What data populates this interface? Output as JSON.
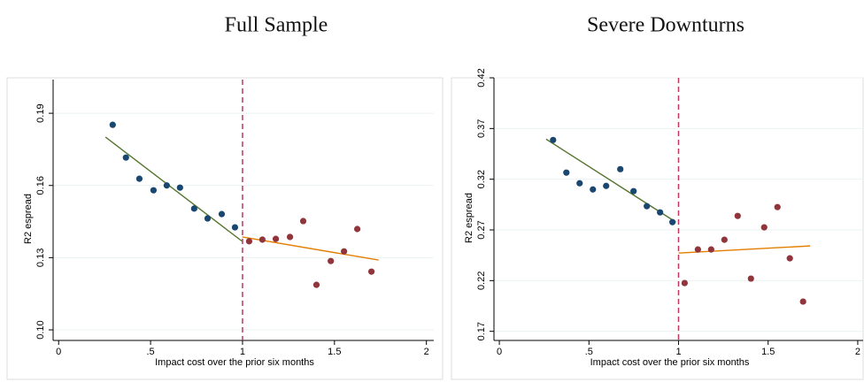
{
  "chart_data": [
    {
      "type": "scatter",
      "title": "Full Sample",
      "xlabel": "Impact cost over the prior six months",
      "ylabel": "R2 espread",
      "xlim": [
        -0.03,
        2.04
      ],
      "ylim": [
        0.0956,
        0.204
      ],
      "xticks": [
        0,
        {
          "value": 0.5,
          "label": ".5"
        },
        1,
        {
          "value": 1.5,
          "label": "1.5"
        },
        2
      ],
      "yticks": [
        {
          "value": 0.1,
          "label": "0.10"
        },
        0.13,
        0.16,
        0.19
      ],
      "grid": true,
      "series": [
        {
          "color": "#1a476f",
          "x": [
            0.294,
            0.366,
            0.439,
            0.516,
            0.588,
            0.66,
            0.737,
            0.81,
            0.887,
            0.959
          ],
          "values": [
            0.1852,
            0.1716,
            0.1628,
            0.158,
            0.16,
            0.1591,
            0.1504,
            0.1463,
            0.1481,
            0.1426
          ]
        },
        {
          "color": "#90353b",
          "x": [
            1.036,
            1.108,
            1.181,
            1.258,
            1.33,
            1.402,
            1.48,
            1.552,
            1.624,
            1.701
          ],
          "values": [
            0.1368,
            0.1375,
            0.1378,
            0.1386,
            0.1452,
            0.1187,
            0.1286,
            0.1326,
            0.1419,
            0.1242
          ]
        }
      ],
      "fit_lines": [
        {
          "color": "#55752f",
          "x": [
            0.255,
            0.998
          ],
          "values": [
            0.1801,
            0.1368
          ]
        },
        {
          "color": "#e37e00",
          "x": [
            0.998,
            1.74
          ],
          "values": [
            0.1386,
            0.129
          ]
        }
      ],
      "vline": 1,
      "vline_color": "#c0385f"
    },
    {
      "type": "scatter",
      "title": "Severe Downturns",
      "xlabel": "Impact cost over the prior six months",
      "ylabel": "R2 espread",
      "xlim": [
        -0.03,
        2.03
      ],
      "ylim": [
        0.161,
        0.42
      ],
      "xticks": [
        0,
        {
          "value": 0.5,
          "label": ".5"
        },
        1,
        {
          "value": 1.5,
          "label": "1.5"
        },
        2
      ],
      "yticks": [
        0.17,
        0.22,
        0.27,
        0.32,
        0.37,
        0.42
      ],
      "grid": true,
      "series": [
        {
          "color": "#1a476f",
          "x": [
            0.3,
            0.374,
            0.448,
            0.522,
            0.596,
            0.675,
            0.749,
            0.823,
            0.897,
            0.966
          ],
          "values": [
            0.3587,
            0.3265,
            0.316,
            0.3099,
            0.3134,
            0.3299,
            0.3082,
            0.2934,
            0.2873,
            0.2777
          ]
        },
        {
          "color": "#90353b",
          "x": [
            1.034,
            1.108,
            1.182,
            1.256,
            1.33,
            1.404,
            1.478,
            1.552,
            1.621,
            1.695
          ],
          "values": [
            0.2176,
            0.2507,
            0.2507,
            0.2603,
            0.2838,
            0.222,
            0.2725,
            0.2925,
            0.242,
            0.1993
          ]
        }
      ],
      "fit_lines": [
        {
          "color": "#55752f",
          "x": [
            0.261,
            0.985
          ],
          "values": [
            0.3595,
            0.2777
          ]
        },
        {
          "color": "#e37e00",
          "x": [
            1.0,
            1.734
          ],
          "values": [
            0.2472,
            0.2542
          ]
        }
      ],
      "vline": 1,
      "vline_color": "#c0385f"
    }
  ]
}
